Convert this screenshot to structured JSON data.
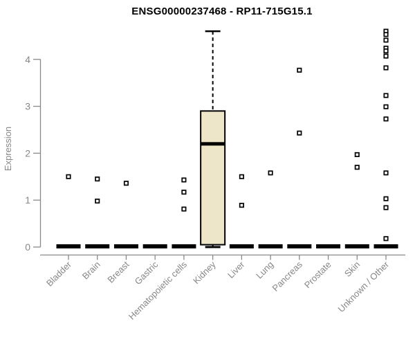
{
  "title": "ENSG00000237468 - RP11-715G15.1",
  "chart_data": {
    "type": "boxplot",
    "title": "ENSG00000237468 - RP11-715G15.1",
    "xlabel": "",
    "ylabel": "Expression",
    "ylim": [
      0,
      4.75
    ],
    "yticks": [
      0,
      1,
      2,
      3,
      4
    ],
    "grid": false,
    "legend": "none",
    "categories": [
      "Bladder",
      "Brain",
      "Breast",
      "Gastric",
      "Hematopoietic cells",
      "Kidney",
      "Liver",
      "Lung",
      "Pancreas",
      "Prostate",
      "Skin",
      "Unknown / Other"
    ],
    "boxes": [
      {
        "category": "Bladder",
        "q1": 0,
        "median": 0,
        "q3": 0,
        "whisker_low": 0,
        "whisker_high": 0,
        "outliers": [
          1.5
        ]
      },
      {
        "category": "Brain",
        "q1": 0,
        "median": 0,
        "q3": 0,
        "whisker_low": 0,
        "whisker_high": 0,
        "outliers": [
          1.45,
          0.98
        ]
      },
      {
        "category": "Breast",
        "q1": 0,
        "median": 0,
        "q3": 0,
        "whisker_low": 0,
        "whisker_high": 0,
        "outliers": [
          1.36
        ]
      },
      {
        "category": "Gastric",
        "q1": 0,
        "median": 0,
        "q3": 0,
        "whisker_low": 0,
        "whisker_high": 0,
        "outliers": []
      },
      {
        "category": "Hematopoietic cells",
        "q1": 0,
        "median": 0,
        "q3": 0,
        "whisker_low": 0,
        "whisker_high": 0,
        "outliers": [
          1.43,
          1.17,
          0.81
        ]
      },
      {
        "category": "Kidney",
        "q1": 0.05,
        "median": 2.2,
        "q3": 2.9,
        "whisker_low": 0,
        "whisker_high": 4.6,
        "outliers": []
      },
      {
        "category": "Liver",
        "q1": 0,
        "median": 0,
        "q3": 0,
        "whisker_low": 0,
        "whisker_high": 0,
        "outliers": [
          1.5,
          0.89
        ]
      },
      {
        "category": "Lung",
        "q1": 0,
        "median": 0,
        "q3": 0,
        "whisker_low": 0,
        "whisker_high": 0,
        "outliers": [
          1.58
        ]
      },
      {
        "category": "Pancreas",
        "q1": 0,
        "median": 0,
        "q3": 0,
        "whisker_low": 0,
        "whisker_high": 0,
        "outliers": [
          3.77,
          2.43
        ]
      },
      {
        "category": "Prostate",
        "q1": 0,
        "median": 0,
        "q3": 0,
        "whisker_low": 0,
        "whisker_high": 0,
        "outliers": []
      },
      {
        "category": "Skin",
        "q1": 0,
        "median": 0,
        "q3": 0,
        "whisker_low": 0,
        "whisker_high": 0,
        "outliers": [
          1.97,
          1.7
        ]
      },
      {
        "category": "Unknown / Other",
        "q1": 0,
        "median": 0,
        "q3": 0,
        "whisker_low": 0,
        "whisker_high": 0,
        "outliers": [
          4.6,
          4.53,
          4.41,
          4.24,
          4.18,
          4.07,
          3.82,
          3.23,
          2.99,
          2.73,
          1.58,
          1.03,
          0.84,
          0.18
        ]
      }
    ],
    "colors": {
      "background": "#ffffff",
      "title": "#000000",
      "axis": "#888888",
      "tick_label": "#878787",
      "box_fill": "#EDE6C9",
      "box_stroke": "#000000",
      "median": "#000000",
      "whisker": "#000000",
      "outlier_stroke": "#000000",
      "outlier_fill": "#ffffff"
    }
  }
}
